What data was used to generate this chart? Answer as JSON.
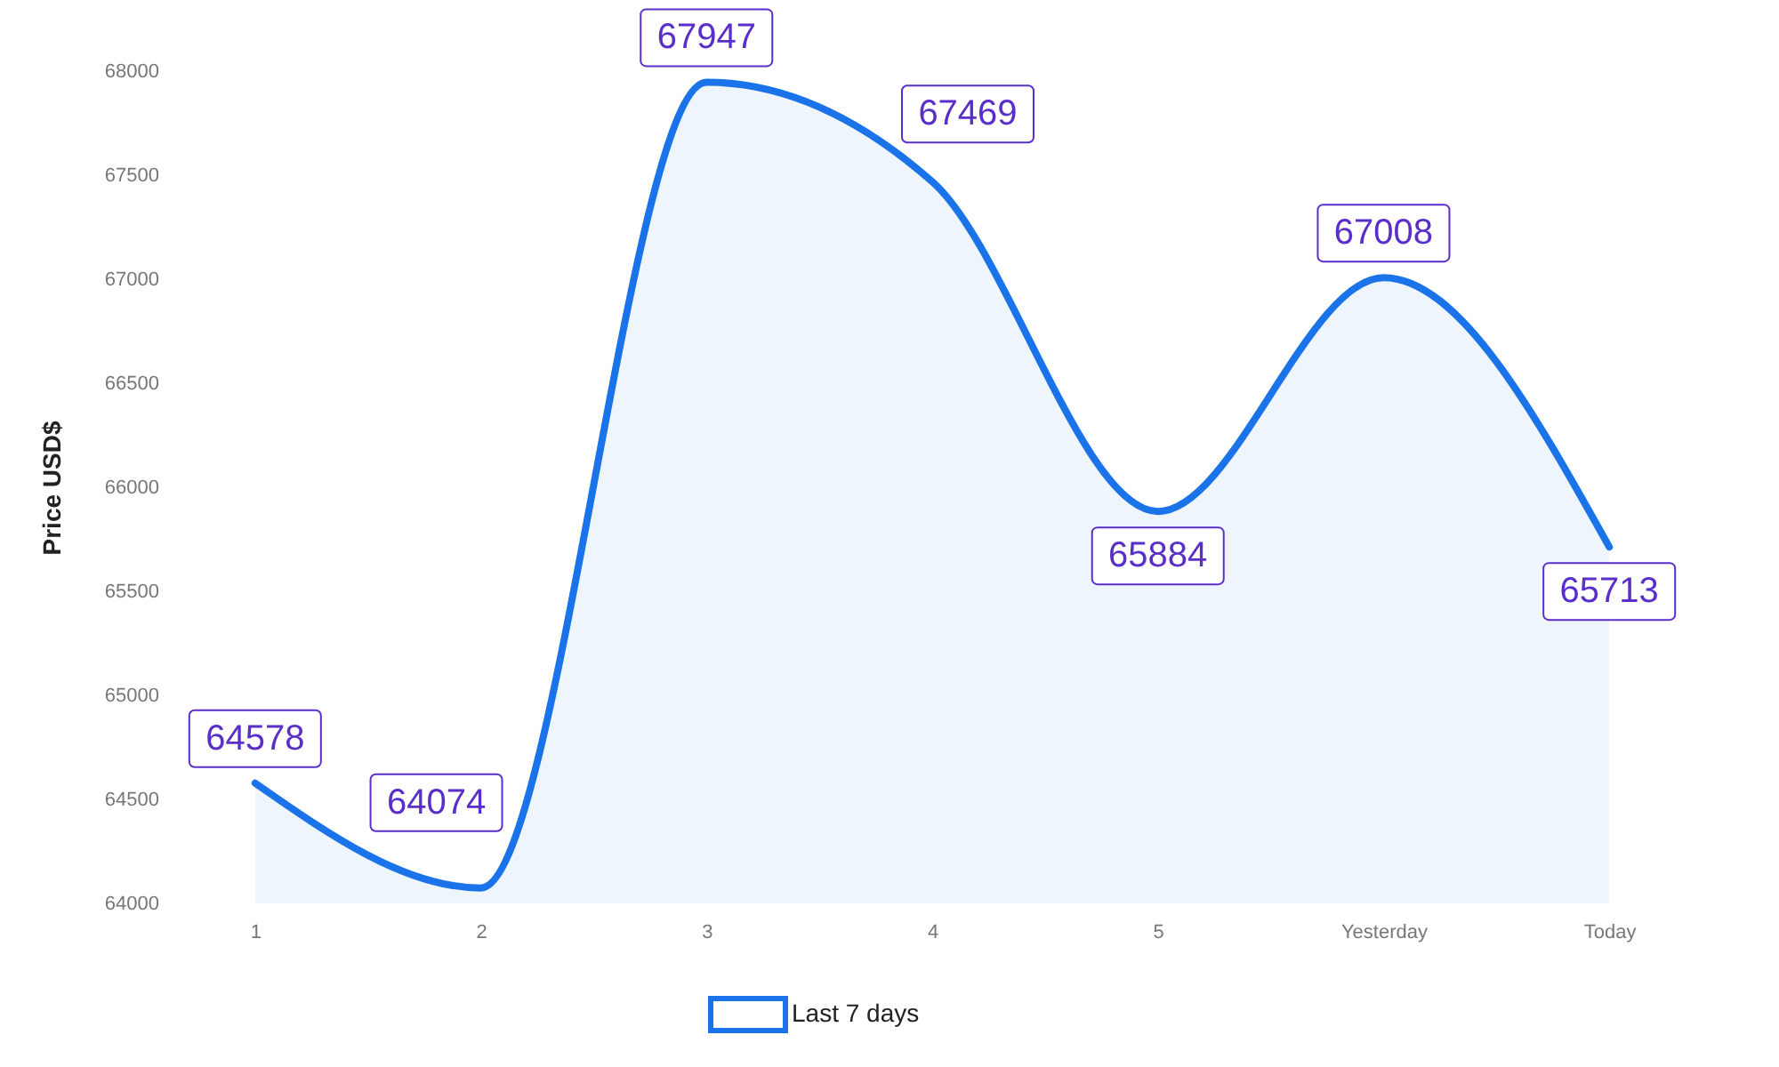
{
  "chart_data": {
    "type": "area",
    "ylabel": "Price USD$",
    "categories": [
      "1",
      "2",
      "3",
      "4",
      "5",
      "Yesterday",
      "Today"
    ],
    "series": [
      {
        "name": "Last 7 days",
        "color": "#1a73e8",
        "values": [
          64578,
          64074,
          67947,
          67469,
          65884,
          67008,
          65713
        ]
      }
    ],
    "ylim": [
      64000,
      68000
    ],
    "yticks": [
      64000,
      64500,
      65000,
      65500,
      66000,
      66500,
      67000,
      67500,
      68000
    ],
    "data_labels": true,
    "legend": "bottom",
    "grid": false
  }
}
